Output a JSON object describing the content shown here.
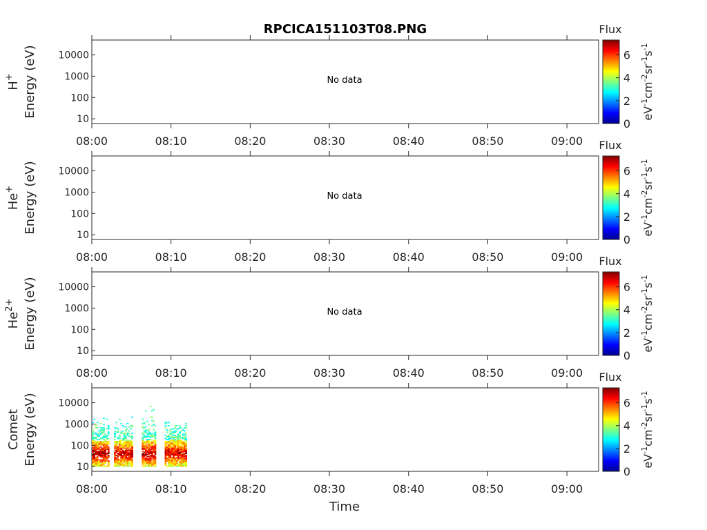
{
  "chart_data": {
    "type": "heatmap",
    "title": "RPCICA151103T08.PNG",
    "xlabel": "Time",
    "x_ticks": [
      "08:00",
      "08:10",
      "08:20",
      "08:30",
      "08:40",
      "08:50",
      "09:00"
    ],
    "y_scale": "log",
    "y_ticks": [
      "10",
      "100",
      "1000",
      "10000"
    ],
    "ylim": [
      6,
      50000
    ],
    "colorbar": {
      "label": "Flux",
      "units_base": "eV",
      "units_text": [
        "eV",
        "-1",
        "cm",
        "-2",
        "sr",
        "-1",
        "s",
        "-1"
      ],
      "ticks": [
        "0",
        "2",
        "4",
        "6"
      ],
      "range": [
        0,
        7.3
      ],
      "colormap": "jet"
    },
    "panels": [
      {
        "species": "H",
        "superscript": "+",
        "ylabel": "Energy (eV)",
        "message": "No data"
      },
      {
        "species": "He",
        "superscript": "+",
        "ylabel": "Energy (eV)",
        "message": "No data"
      },
      {
        "species": "He",
        "superscript": "2+",
        "ylabel": "Energy (eV)",
        "message": "No data"
      },
      {
        "species": "Comet",
        "superscript": "",
        "ylabel": "Energy (eV)",
        "message": "",
        "bursts": [
          {
            "t_start_min": 0.0,
            "t_end_min": 2.0,
            "core_energy_eV": 40,
            "peak_flux": 7.0,
            "max_energy_eV": 2000
          },
          {
            "t_start_min": 2.8,
            "t_end_min": 5.2,
            "core_energy_eV": 40,
            "peak_flux": 6.8,
            "max_energy_eV": 2000
          },
          {
            "t_start_min": 6.3,
            "t_end_min": 8.0,
            "core_energy_eV": 40,
            "peak_flux": 7.0,
            "max_energy_eV": 7000
          },
          {
            "t_start_min": 9.2,
            "t_end_min": 11.8,
            "core_energy_eV": 40,
            "peak_flux": 6.8,
            "max_energy_eV": 1200
          }
        ]
      }
    ]
  }
}
